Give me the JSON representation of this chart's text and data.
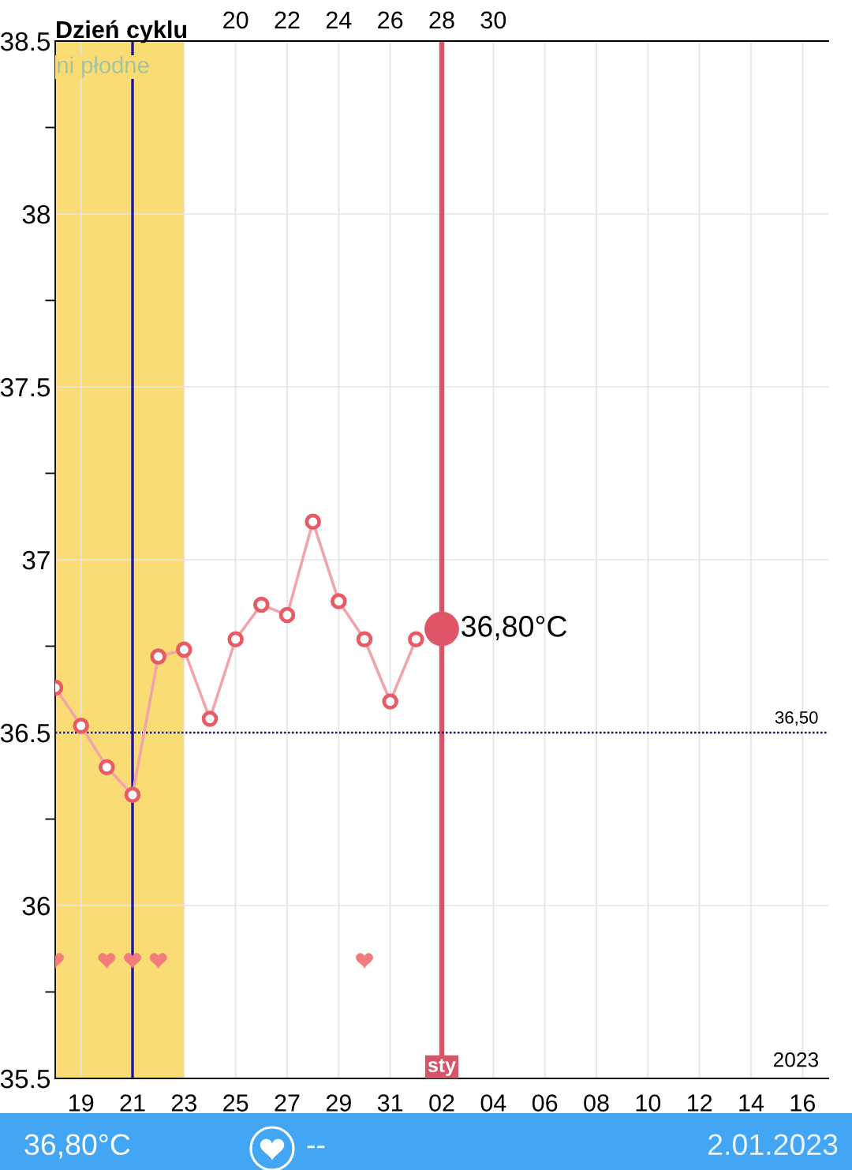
{
  "chart_data": {
    "type": "line",
    "x2label": "Dzień cyklu",
    "xlim": [
      "2022-12-18",
      "2023-01-17"
    ],
    "xticks": [
      {
        "value": "2022-12-19",
        "label": "19"
      },
      {
        "value": "2022-12-21",
        "label": "21"
      },
      {
        "value": "2022-12-23",
        "label": "23"
      },
      {
        "value": "2022-12-25",
        "label": "25"
      },
      {
        "value": "2022-12-27",
        "label": "27"
      },
      {
        "value": "2022-12-29",
        "label": "29"
      },
      {
        "value": "2022-12-31",
        "label": "31"
      },
      {
        "value": "2023-01-02",
        "label": "02"
      },
      {
        "value": "2023-01-04",
        "label": "04"
      },
      {
        "value": "2023-01-06",
        "label": "06"
      },
      {
        "value": "2023-01-08",
        "label": "08"
      },
      {
        "value": "2023-01-10",
        "label": "10"
      },
      {
        "value": "2023-01-12",
        "label": "12"
      },
      {
        "value": "2023-01-14",
        "label": "14"
      },
      {
        "value": "2023-01-16",
        "label": "16"
      }
    ],
    "ylim": [
      35.5,
      38.5
    ],
    "yticks": [
      35.5,
      {
        "value": 35.75,
        "label": null
      },
      36,
      {
        "value": 36.25,
        "label": null
      },
      36.5,
      {
        "value": 36.75,
        "label": null
      },
      37,
      {
        "value": 37.25,
        "label": null
      },
      37.5,
      {
        "value": 37.75,
        "label": null
      },
      38,
      {
        "value": 38.25,
        "label": null
      },
      38.5
    ],
    "x2lim": [
      13,
      43
    ],
    "x2ticks": [
      20,
      22,
      24,
      26,
      28,
      30
    ],
    "grid": true,
    "series": [
      {
        "color": "#e85a64",
        "marker": "circle",
        "x": [
          "2022-12-18",
          "2022-12-19",
          "2022-12-20",
          "2022-12-21",
          "2022-12-22",
          "2022-12-23",
          "2022-12-24",
          "2022-12-25",
          "2022-12-26",
          "2022-12-27",
          "2022-12-28",
          "2022-12-29",
          "2022-12-30",
          "2022-12-31",
          "2023-01-01"
        ],
        "values": [
          36.63,
          36.52,
          36.4,
          36.32,
          36.72,
          36.74,
          36.54,
          36.77,
          36.87,
          36.84,
          37.11,
          36.88,
          36.77,
          36.59,
          36.77
        ]
      },
      {
        "type": "scatter",
        "color": "#de5567",
        "marker": "circle",
        "x": [
          "2023-01-02"
        ],
        "values": [
          36.8
        ],
        "value_labels": [
          "36,80°C"
        ]
      },
      {
        "type": "scatter",
        "color": "#f27b7b",
        "x": [
          "2022-12-18",
          "2022-12-20",
          "2022-12-21",
          "2022-12-22",
          "2022-12-30"
        ],
        "values": [
          35.84,
          35.84,
          35.84,
          35.84,
          35.84
        ]
      }
    ],
    "bands": [
      {
        "axis": "x",
        "from": "2022-12-18",
        "to": "2022-12-23",
        "label": "ni płodne",
        "color": "#f9dc74"
      }
    ],
    "ref_lines": [
      {
        "axis": "x",
        "value": "2022-12-21",
        "color": "#1c12a0"
      },
      {
        "axis": "x",
        "value": "2023-01-02",
        "label": "sty",
        "color": "#d65566"
      },
      {
        "axis": "y",
        "value": 36.5,
        "label": "36,50",
        "line_style": "dotted",
        "color": "#1f1f66"
      }
    ],
    "annotations": [
      "2023",
      "36,80°C",
      "--",
      "2.01.2023"
    ]
  }
}
